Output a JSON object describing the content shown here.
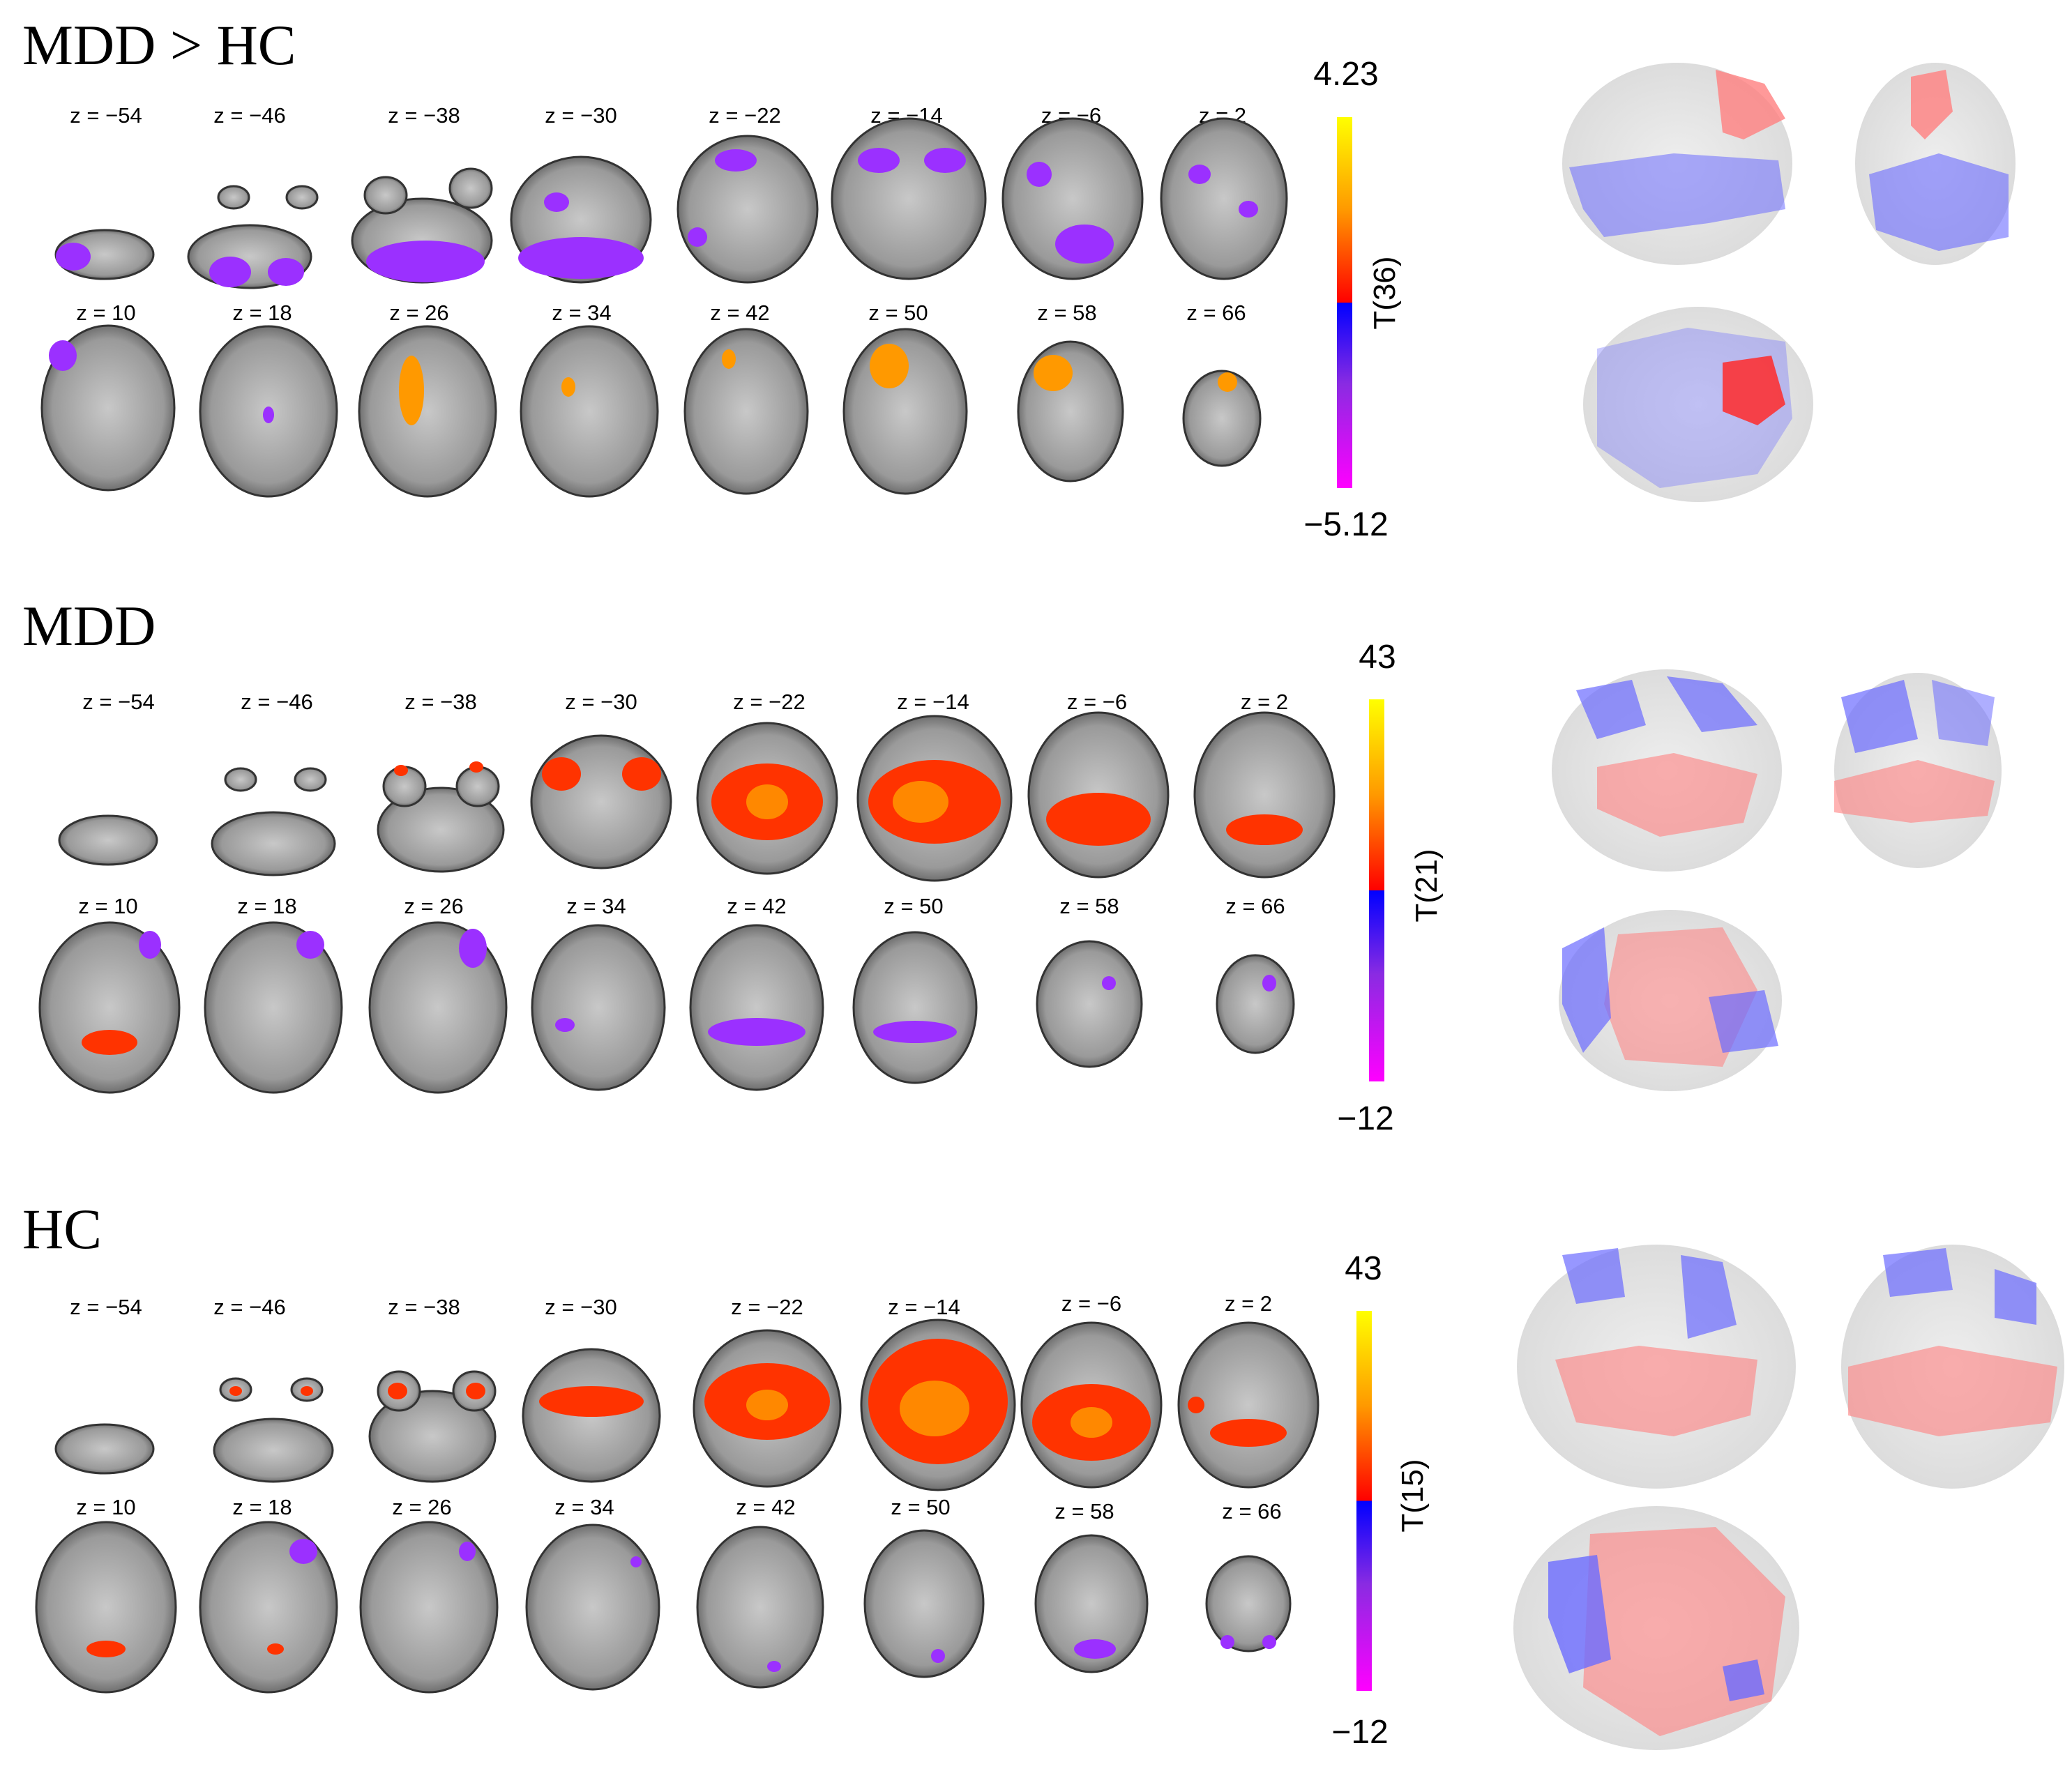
{
  "panels": [
    {
      "title": "MDD > HC",
      "colorbar": {
        "max_label": "4.23",
        "min_label": "−5.12",
        "stat_label": "T(36)"
      },
      "slices": [
        "z = −54",
        "z = −46",
        "z = −38",
        "z = −30",
        "z = −22",
        "z = −14",
        "z = −6",
        "z = 2",
        "z = 10",
        "z = 18",
        "z = 26",
        "z = 34",
        "z = 42",
        "z = 50",
        "z = 58",
        "z = 66"
      ]
    },
    {
      "title": "MDD",
      "colorbar": {
        "max_label": "43",
        "min_label": "−12",
        "stat_label": "T(21)"
      },
      "slices": [
        "z = −54",
        "z = −46",
        "z = −38",
        "z = −30",
        "z = −22",
        "z = −14",
        "z = −6",
        "z = 2",
        "z = 10",
        "z = 18",
        "z = 26",
        "z = 34",
        "z = 42",
        "z = 50",
        "z = 58",
        "z = 66"
      ]
    },
    {
      "title": "HC",
      "colorbar": {
        "max_label": "43",
        "min_label": "−12",
        "stat_label": "T(15)"
      },
      "slices": [
        "z = −54",
        "z = −46",
        "z = −38",
        "z = −30",
        "z = −22",
        "z = −14",
        "z = −6",
        "z = 2",
        "z = 10",
        "z = 18",
        "z = 26",
        "z = 34",
        "z = 42",
        "z = 50",
        "z = 58",
        "z = 66"
      ]
    }
  ],
  "colors": {
    "positive_low": "#ff0000",
    "positive_mid": "#ff8c00",
    "positive_high": "#ffff00",
    "negative_low": "#0000ff",
    "negative_mid": "#8a2be2",
    "negative_high": "#ff00ff",
    "glass_positive": "#ff8080",
    "glass_negative": "#6b6bff"
  }
}
